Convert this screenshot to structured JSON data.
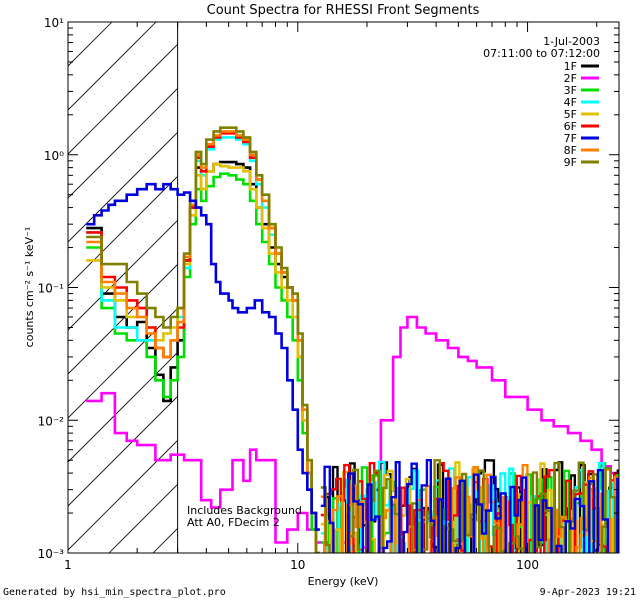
{
  "chart_data": {
    "type": "line",
    "title": "Count Spectra for RHESSI Front Segments",
    "xlabel": "Energy (keV)",
    "ylabel": "counts cm⁻² s⁻¹ keV⁻¹",
    "x_scale": "log",
    "y_scale": "log",
    "xlim": [
      1,
      250
    ],
    "ylim": [
      0.001,
      10
    ],
    "x_ticks": [
      {
        "value": 1,
        "label": "1"
      },
      {
        "value": 10,
        "label": "10"
      },
      {
        "value": 100,
        "label": "100"
      }
    ],
    "y_ticks": [
      {
        "value": 0.001,
        "label": "10⁻³"
      },
      {
        "value": 0.01,
        "label": "10⁻²"
      },
      {
        "value": 0.1,
        "label": "10⁻¹"
      },
      {
        "value": 1,
        "label": "10⁰"
      },
      {
        "value": 10,
        "label": "10¹"
      }
    ],
    "attenuator_band_keV": [
      1,
      3
    ],
    "legend_position": "top-right",
    "date": "1-Jul-2003",
    "time_range": "07:11:00 to 07:12:00",
    "annotations": [
      "Includes Background",
      "Att A0, FDecim 2"
    ],
    "footer_left": "Generated by hsi_min_spectra_plot.pro",
    "footer_right": "9-Apr-2023 19:21",
    "series": [
      {
        "name": "1F",
        "color": "#000000",
        "x": [
          1.2,
          1.4,
          1.6,
          1.8,
          2.0,
          2.2,
          2.4,
          2.6,
          2.8,
          3.0,
          3.2,
          3.4,
          3.6,
          3.8,
          4.0,
          4.3,
          4.6,
          5.0,
          5.4,
          5.8,
          6.2,
          6.6,
          7.0,
          7.5,
          8.0,
          8.5,
          9.0,
          9.5,
          10.0,
          10.5,
          11.0,
          11.5,
          12.0
        ],
        "y": [
          0.28,
          0.09,
          0.06,
          0.05,
          0.055,
          0.035,
          0.022,
          0.014,
          0.025,
          0.04,
          0.16,
          0.4,
          0.8,
          0.55,
          0.75,
          0.85,
          0.88,
          0.88,
          0.85,
          0.8,
          0.6,
          0.4,
          0.3,
          0.2,
          0.15,
          0.12,
          0.1,
          0.08,
          0.03,
          0.01,
          0.004,
          0.002,
          0.001
        ]
      },
      {
        "name": "2F",
        "color": "#ff00ff",
        "x": [
          1.2,
          1.4,
          1.6,
          1.8,
          2.0,
          2.4,
          2.8,
          3.2,
          3.8,
          4.2,
          4.6,
          5.2,
          5.8,
          6.2,
          6.6,
          7.0,
          8.0,
          9.0,
          10.0,
          11.0,
          12.0,
          14.0,
          17.0,
          20.0,
          23.0,
          26.0,
          28.0,
          30.0,
          33.0,
          36.0,
          40.0,
          45.0,
          50.0,
          55.0,
          60.0,
          70.0,
          80.0,
          90.0,
          100.0,
          115.0,
          130.0,
          150.0,
          170.0,
          190.0,
          210.0,
          230.0,
          250.0
        ],
        "y": [
          0.014,
          0.016,
          0.008,
          0.007,
          0.0065,
          0.005,
          0.0055,
          0.005,
          0.0025,
          0.0022,
          0.003,
          0.005,
          0.0035,
          0.006,
          0.005,
          0.005,
          0.0012,
          0.0015,
          0.002,
          0.0015,
          0.0012,
          0.0012,
          0.0011,
          0.003,
          0.01,
          0.03,
          0.05,
          0.06,
          0.05,
          0.045,
          0.04,
          0.035,
          0.03,
          0.028,
          0.025,
          0.02,
          0.015,
          0.015,
          0.012,
          0.01,
          0.009,
          0.008,
          0.007,
          0.006,
          0.0045,
          0.004,
          0.0038
        ]
      },
      {
        "name": "3F",
        "color": "#00e000",
        "x": [
          1.2,
          1.4,
          1.6,
          1.8,
          2.0,
          2.2,
          2.4,
          2.6,
          2.8,
          3.0,
          3.2,
          3.4,
          3.6,
          3.8,
          4.0,
          4.3,
          4.6,
          5.0,
          5.4,
          5.8,
          6.2,
          6.6,
          7.0,
          7.5,
          8.0,
          8.5,
          9.0,
          9.5,
          10.0,
          10.5,
          11.0,
          11.5,
          12.0
        ],
        "y": [
          0.2,
          0.07,
          0.045,
          0.04,
          0.04,
          0.03,
          0.02,
          0.015,
          0.02,
          0.03,
          0.12,
          0.3,
          0.55,
          0.45,
          0.58,
          0.68,
          0.72,
          0.7,
          0.65,
          0.6,
          0.45,
          0.3,
          0.22,
          0.15,
          0.1,
          0.08,
          0.06,
          0.04,
          0.02,
          0.008,
          0.003,
          0.0015,
          0.001
        ]
      },
      {
        "name": "4F",
        "color": "#00ffff",
        "x": [
          1.2,
          1.4,
          1.6,
          1.8,
          2.0,
          2.2,
          2.4,
          2.6,
          2.8,
          3.0,
          3.2,
          3.4,
          3.6,
          3.8,
          4.0,
          4.3,
          4.6,
          5.0,
          5.4,
          5.8,
          6.2,
          6.6,
          7.0,
          7.5,
          8.0,
          8.5,
          9.0,
          9.5,
          10.0,
          10.5,
          11.0,
          11.5,
          12.0
        ],
        "y": [
          0.26,
          0.08,
          0.05,
          0.05,
          0.04,
          0.04,
          0.035,
          0.03,
          0.04,
          0.06,
          0.14,
          0.35,
          0.9,
          0.7,
          1.1,
          1.3,
          1.35,
          1.35,
          1.3,
          1.2,
          0.9,
          0.6,
          0.4,
          0.25,
          0.18,
          0.13,
          0.1,
          0.08,
          0.04,
          0.012,
          0.004,
          0.002,
          0.001
        ]
      },
      {
        "name": "5F",
        "color": "#e0c000",
        "x": [
          1.2,
          1.4,
          1.6,
          1.8,
          2.0,
          2.2,
          2.4,
          2.6,
          2.8,
          3.0,
          3.2,
          3.4,
          3.6,
          3.8,
          4.0,
          4.3,
          4.6,
          5.0,
          5.4,
          5.8,
          6.2,
          6.6,
          7.0,
          7.5,
          8.0,
          8.5,
          9.0,
          9.5,
          10.0,
          10.5,
          11.0,
          11.5,
          12.0
        ],
        "y": [
          0.16,
          0.1,
          0.08,
          0.06,
          0.07,
          0.05,
          0.04,
          0.045,
          0.05,
          0.07,
          0.15,
          0.35,
          0.7,
          0.55,
          0.75,
          0.85,
          0.82,
          0.8,
          0.8,
          0.75,
          0.55,
          0.4,
          0.28,
          0.18,
          0.13,
          0.1,
          0.08,
          0.06,
          0.03,
          0.01,
          0.004,
          0.002,
          0.001
        ]
      },
      {
        "name": "6F",
        "color": "#ff0000",
        "x": [
          1.2,
          1.4,
          1.6,
          1.8,
          2.0,
          2.2,
          2.4,
          2.6,
          2.8,
          3.0,
          3.2,
          3.4,
          3.6,
          3.8,
          4.0,
          4.3,
          4.6,
          5.0,
          5.4,
          5.8,
          6.2,
          6.6,
          7.0,
          7.5,
          8.0,
          8.5,
          9.0,
          9.5,
          10.0,
          10.5,
          11.0,
          11.5,
          12.0
        ],
        "y": [
          0.26,
          0.12,
          0.1,
          0.08,
          0.07,
          0.05,
          0.035,
          0.03,
          0.04,
          0.05,
          0.16,
          0.4,
          0.95,
          0.75,
          1.15,
          1.35,
          1.45,
          1.45,
          1.35,
          1.25,
          0.95,
          0.65,
          0.45,
          0.28,
          0.18,
          0.13,
          0.1,
          0.08,
          0.04,
          0.012,
          0.004,
          0.002,
          0.001
        ]
      },
      {
        "name": "7F",
        "color": "#0000e0",
        "x": [
          1.2,
          1.3,
          1.4,
          1.5,
          1.6,
          1.7,
          1.8,
          1.9,
          2.0,
          2.2,
          2.4,
          2.6,
          2.8,
          3.0,
          3.2,
          3.4,
          3.6,
          3.8,
          4.0,
          4.2,
          4.4,
          4.6,
          4.8,
          5.0,
          5.2,
          5.5,
          6.0,
          6.5,
          7.0,
          7.5,
          8.0,
          8.5,
          9.0,
          9.5,
          10.0,
          10.5,
          11.0,
          11.5,
          12.0
        ],
        "y": [
          0.3,
          0.35,
          0.38,
          0.42,
          0.45,
          0.45,
          0.5,
          0.5,
          0.55,
          0.6,
          0.55,
          0.6,
          0.55,
          0.5,
          0.52,
          0.45,
          0.4,
          0.35,
          0.3,
          0.15,
          0.11,
          0.09,
          0.09,
          0.08,
          0.07,
          0.065,
          0.07,
          0.08,
          0.065,
          0.06,
          0.045,
          0.035,
          0.02,
          0.012,
          0.006,
          0.004,
          0.003,
          0.002,
          0.0015
        ]
      },
      {
        "name": "8F",
        "color": "#ff8000",
        "x": [
          1.2,
          1.4,
          1.6,
          1.8,
          2.0,
          2.2,
          2.4,
          2.6,
          2.8,
          3.0,
          3.2,
          3.4,
          3.6,
          3.8,
          4.0,
          4.3,
          4.6,
          5.0,
          5.4,
          5.8,
          6.2,
          6.6,
          7.0,
          7.5,
          8.0,
          8.5,
          9.0,
          9.5,
          10.0,
          10.5,
          11.0,
          11.5,
          12.0
        ],
        "y": [
          0.22,
          0.11,
          0.09,
          0.07,
          0.06,
          0.045,
          0.035,
          0.03,
          0.04,
          0.055,
          0.17,
          0.42,
          1.0,
          0.8,
          1.2,
          1.4,
          1.5,
          1.5,
          1.4,
          1.3,
          1.0,
          0.65,
          0.45,
          0.28,
          0.18,
          0.13,
          0.1,
          0.08,
          0.04,
          0.012,
          0.004,
          0.002,
          0.001
        ]
      },
      {
        "name": "9F",
        "color": "#808000",
        "x": [
          1.2,
          1.4,
          1.6,
          1.8,
          2.0,
          2.2,
          2.4,
          2.6,
          2.8,
          3.0,
          3.2,
          3.4,
          3.6,
          3.8,
          4.0,
          4.3,
          4.6,
          5.0,
          5.4,
          5.8,
          6.2,
          6.6,
          7.0,
          7.5,
          8.0,
          8.5,
          9.0,
          9.5,
          10.0,
          10.5,
          11.0,
          11.5,
          12.0
        ],
        "y": [
          0.24,
          0.15,
          0.15,
          0.11,
          0.09,
          0.07,
          0.06,
          0.05,
          0.06,
          0.07,
          0.18,
          0.45,
          1.05,
          0.85,
          1.3,
          1.5,
          1.6,
          1.6,
          1.5,
          1.35,
          1.05,
          0.7,
          0.5,
          0.3,
          0.2,
          0.14,
          0.1,
          0.09,
          0.045,
          0.013,
          0.005,
          0.002,
          0.001
        ]
      }
    ]
  }
}
